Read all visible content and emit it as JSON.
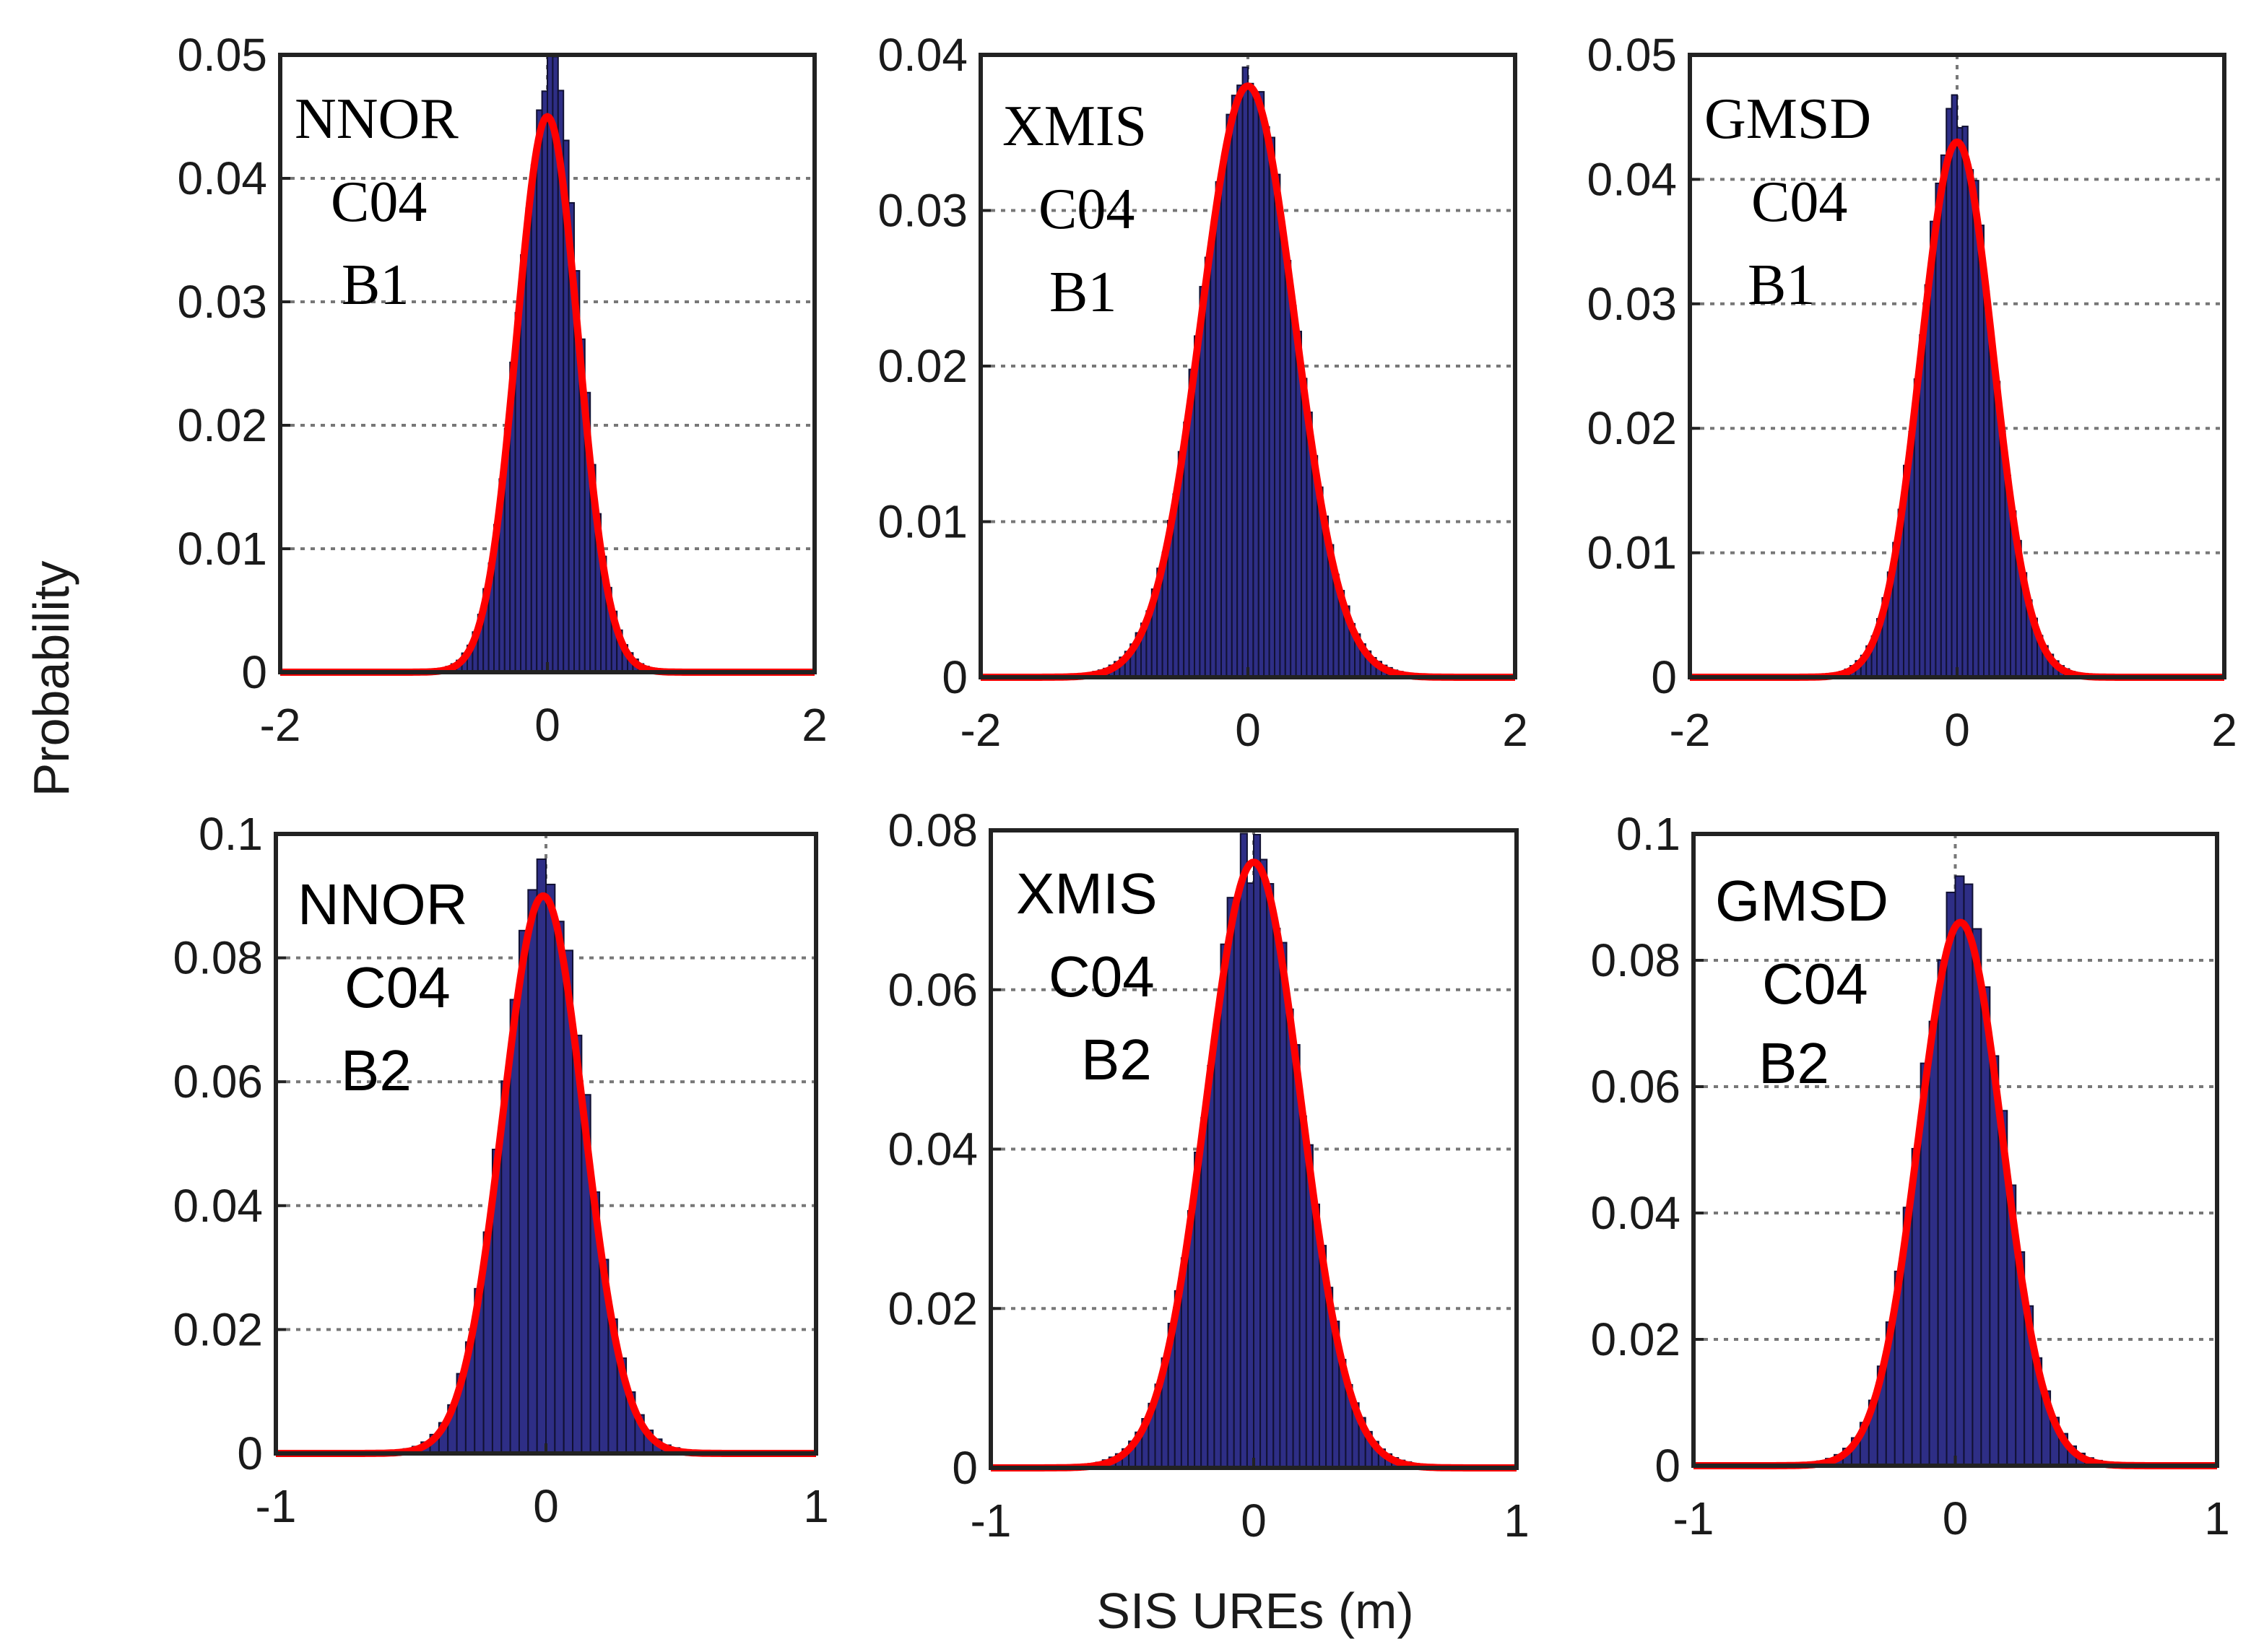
{
  "figure": {
    "ylabel": "Probability",
    "xlabel": "SIS UREs (m)",
    "colors": {
      "bar": "#2e2e86",
      "bar_edge": "#111133",
      "fit": "#ff0000",
      "grid": "#777777",
      "axis": "#222222"
    }
  },
  "chart_data": [
    {
      "type": "bar",
      "id": "p1",
      "annotation": [
        "NNOR",
        "C04",
        "B1"
      ],
      "annotation_font": "serif",
      "xlim": [
        -2,
        2
      ],
      "xticks": [
        "-2",
        "0",
        "2"
      ],
      "ylim": [
        0,
        0.05
      ],
      "yticks": [
        "0",
        "0.01",
        "0.02",
        "0.03",
        "0.04",
        "0.05"
      ],
      "mean": 0.0,
      "sigma": 0.23,
      "peak_fit": 0.045,
      "peak_hist": 0.0495,
      "bin_width": 0.04,
      "skew_right": 0.1
    },
    {
      "type": "bar",
      "id": "p2",
      "annotation": [
        "XMIS",
        "C04",
        "B1"
      ],
      "annotation_font": "serif",
      "xlim": [
        -2,
        2
      ],
      "xticks": [
        "-2",
        "0",
        "2"
      ],
      "ylim": [
        0,
        0.04
      ],
      "yticks": [
        "0",
        "0.01",
        "0.02",
        "0.03",
        "0.04"
      ],
      "mean": 0.0,
      "sigma": 0.35,
      "peak_fit": 0.038,
      "peak_hist": 0.039,
      "bin_width": 0.04,
      "skew_right": 0.0
    },
    {
      "type": "bar",
      "id": "p3",
      "annotation": [
        "GMSD",
        "C04",
        "B1"
      ],
      "annotation_font": "serif",
      "xlim": [
        -2,
        2
      ],
      "xticks": [
        "-2",
        "0",
        "2"
      ],
      "ylim": [
        0,
        0.05
      ],
      "yticks": [
        "0",
        "0.01",
        "0.02",
        "0.03",
        "0.04",
        "0.05"
      ],
      "mean": 0.0,
      "sigma": 0.27,
      "peak_fit": 0.043,
      "peak_hist": 0.046,
      "bin_width": 0.04,
      "skew_right": 0.0
    },
    {
      "type": "bar",
      "id": "p4",
      "annotation": [
        "NNOR",
        "C04",
        "B2"
      ],
      "annotation_font": "sans",
      "xlim": [
        -1,
        1
      ],
      "xticks": [
        "-1",
        "0",
        "1"
      ],
      "ylim": [
        0,
        0.1
      ],
      "yticks": [
        "0",
        "0.02",
        "0.04",
        "0.06",
        "0.08",
        "0.1"
      ],
      "mean": -0.01,
      "sigma": 0.15,
      "peak_fit": 0.09,
      "peak_hist": 0.094,
      "bin_width": 0.033,
      "skew_right": 0.05
    },
    {
      "type": "bar",
      "id": "p5",
      "annotation": [
        "XMIS",
        "C04",
        "B2"
      ],
      "annotation_font": "sans",
      "xlim": [
        -1,
        1
      ],
      "xticks": [
        "-1",
        "0",
        "1"
      ],
      "ylim": [
        0,
        0.08
      ],
      "yticks": [
        "0",
        "0.02",
        "0.04",
        "0.06",
        "0.08"
      ],
      "mean": 0.0,
      "sigma": 0.18,
      "peak_fit": 0.076,
      "peak_hist": 0.078,
      "bin_width": 0.025,
      "skew_right": 0.0
    },
    {
      "type": "bar",
      "id": "p6",
      "annotation": [
        "GMSD",
        "C04",
        "B2"
      ],
      "annotation_font": "sans",
      "xlim": [
        -1,
        1
      ],
      "xticks": [
        "-1",
        "0",
        "1"
      ],
      "ylim": [
        0,
        0.1
      ],
      "yticks": [
        "0",
        "0.02",
        "0.04",
        "0.06",
        "0.08",
        "0.1"
      ],
      "mean": 0.02,
      "sigma": 0.16,
      "peak_fit": 0.086,
      "peak_hist": 0.092,
      "bin_width": 0.033,
      "skew_right": 0.05
    }
  ]
}
